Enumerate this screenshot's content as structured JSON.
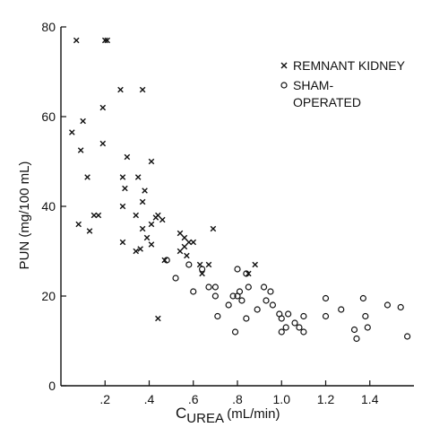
{
  "chart_data": {
    "type": "scatter",
    "title": "",
    "xlabel": {
      "main": "C",
      "sub": "UREA",
      "unit": " (mL/min)"
    },
    "ylabel": "PUN (mg/100 mL)",
    "xlim": [
      0,
      1.6
    ],
    "ylim": [
      0,
      80
    ],
    "x_ticks": [
      {
        "value": 0.2,
        "label": ".2"
      },
      {
        "value": 0.4,
        "label": ".4"
      },
      {
        "value": 0.6,
        "label": ".6"
      },
      {
        "value": 0.8,
        "label": ".8"
      },
      {
        "value": 1.0,
        "label": "1.0"
      },
      {
        "value": 1.2,
        "label": "1.2"
      },
      {
        "value": 1.4,
        "label": "1.4"
      }
    ],
    "y_ticks": [
      {
        "value": 0,
        "label": "0"
      },
      {
        "value": 20,
        "label": "20"
      },
      {
        "value": 40,
        "label": "40"
      },
      {
        "value": 60,
        "label": "60"
      },
      {
        "value": 80,
        "label": "80"
      }
    ],
    "grid": false,
    "legend_position": "top-right",
    "series": [
      {
        "name": "REMNANT KIDNEY",
        "marker": "x",
        "points": [
          [
            0.07,
            77
          ],
          [
            0.2,
            77
          ],
          [
            0.21,
            77
          ],
          [
            0.27,
            66
          ],
          [
            0.37,
            66
          ],
          [
            0.19,
            62
          ],
          [
            0.1,
            59
          ],
          [
            0.05,
            56.5
          ],
          [
            0.09,
            52.5
          ],
          [
            0.19,
            54
          ],
          [
            0.12,
            46.5
          ],
          [
            0.3,
            51
          ],
          [
            0.41,
            50
          ],
          [
            0.28,
            46.5
          ],
          [
            0.35,
            46.5
          ],
          [
            0.29,
            44
          ],
          [
            0.38,
            43.5
          ],
          [
            0.17,
            38
          ],
          [
            0.15,
            38
          ],
          [
            0.08,
            36
          ],
          [
            0.13,
            34.5
          ],
          [
            0.28,
            40
          ],
          [
            0.37,
            41
          ],
          [
            0.44,
            38
          ],
          [
            0.43,
            37.5
          ],
          [
            0.46,
            37
          ],
          [
            0.34,
            38
          ],
          [
            0.41,
            36
          ],
          [
            0.39,
            33
          ],
          [
            0.37,
            35
          ],
          [
            0.28,
            32
          ],
          [
            0.41,
            31.5
          ],
          [
            0.34,
            30
          ],
          [
            0.36,
            30.5
          ],
          [
            0.47,
            28
          ],
          [
            0.54,
            34
          ],
          [
            0.56,
            33
          ],
          [
            0.56,
            31
          ],
          [
            0.58,
            32
          ],
          [
            0.54,
            30
          ],
          [
            0.6,
            32
          ],
          [
            0.57,
            29
          ],
          [
            0.63,
            27
          ],
          [
            0.67,
            27
          ],
          [
            0.69,
            35
          ],
          [
            0.64,
            25
          ],
          [
            0.85,
            25
          ],
          [
            0.88,
            27
          ],
          [
            0.44,
            15
          ]
        ]
      },
      {
        "name": "SHAM-OPERATED",
        "marker": "o",
        "points": [
          [
            0.48,
            28
          ],
          [
            0.52,
            24
          ],
          [
            0.58,
            27
          ],
          [
            0.6,
            21
          ],
          [
            0.64,
            26
          ],
          [
            0.67,
            22
          ],
          [
            0.7,
            22
          ],
          [
            0.7,
            20
          ],
          [
            0.71,
            15.5
          ],
          [
            0.76,
            18
          ],
          [
            0.78,
            20
          ],
          [
            0.79,
            12
          ],
          [
            0.8,
            26
          ],
          [
            0.8,
            20
          ],
          [
            0.81,
            21
          ],
          [
            0.82,
            19
          ],
          [
            0.84,
            15
          ],
          [
            0.84,
            25
          ],
          [
            0.85,
            22
          ],
          [
            0.89,
            17
          ],
          [
            0.92,
            22
          ],
          [
            0.93,
            19
          ],
          [
            0.95,
            21
          ],
          [
            0.96,
            18
          ],
          [
            0.99,
            16
          ],
          [
            1.0,
            12
          ],
          [
            1.0,
            15
          ],
          [
            1.02,
            13
          ],
          [
            1.03,
            16
          ],
          [
            1.06,
            14
          ],
          [
            1.08,
            13
          ],
          [
            1.1,
            15.5
          ],
          [
            1.1,
            12
          ],
          [
            1.2,
            19.5
          ],
          [
            1.2,
            15.5
          ],
          [
            1.27,
            17
          ],
          [
            1.33,
            12.5
          ],
          [
            1.34,
            10.5
          ],
          [
            1.37,
            19.5
          ],
          [
            1.38,
            15.5
          ],
          [
            1.39,
            13
          ],
          [
            1.48,
            18
          ],
          [
            1.54,
            17.5
          ],
          [
            1.57,
            11
          ]
        ]
      }
    ]
  }
}
